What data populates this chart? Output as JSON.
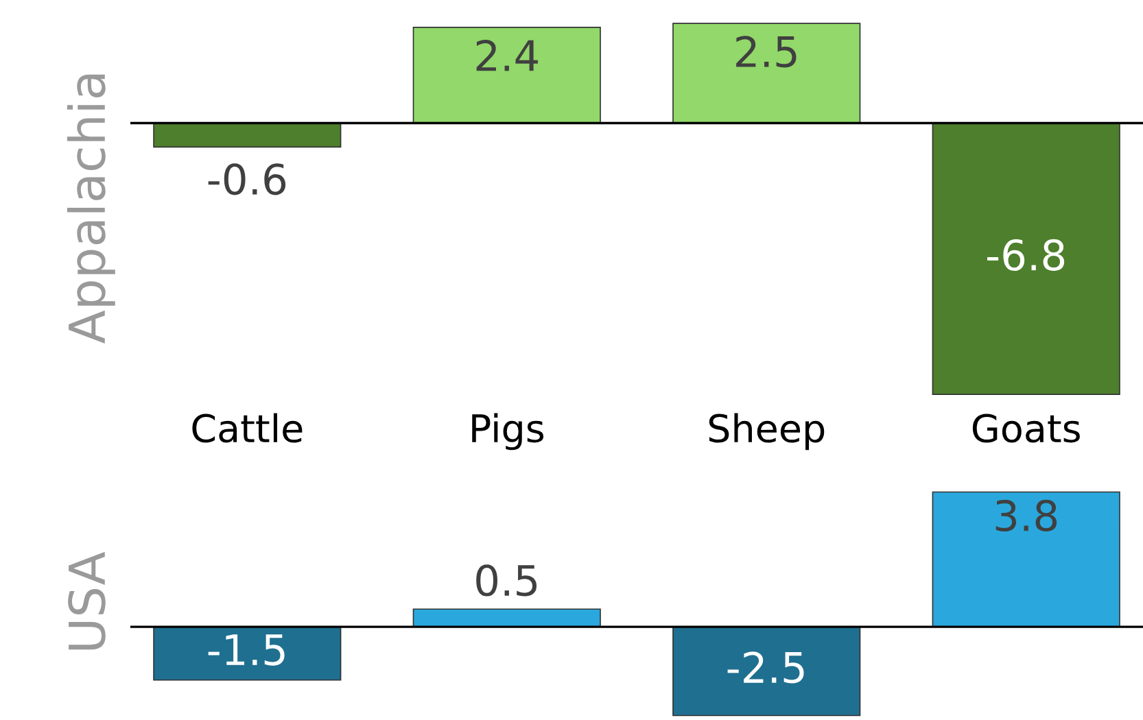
{
  "chart_data": [
    {
      "type": "bar",
      "ylabel": "Appalachia",
      "categories": [
        "Cattle",
        "Pigs",
        "Sheep",
        "Goats"
      ],
      "values": [
        -0.6,
        2.4,
        2.5,
        -6.8
      ],
      "colors": [
        "#4e7f2c",
        "#92d86a",
        "#92d86a",
        "#4e7f2c"
      ],
      "data_labels": true,
      "tick_labels": "x",
      "grid": false,
      "legend": false
    },
    {
      "type": "bar",
      "ylabel": "USA",
      "categories": [
        null,
        null,
        null,
        null
      ],
      "values": [
        -1.5,
        0.5,
        -2.5,
        3.8
      ],
      "colors": [
        "#1f6f90",
        "#2aa8de",
        "#1f6f90",
        "#2aa8de"
      ],
      "data_labels": true,
      "tick_labels": false,
      "grid": false,
      "legend": false
    }
  ]
}
